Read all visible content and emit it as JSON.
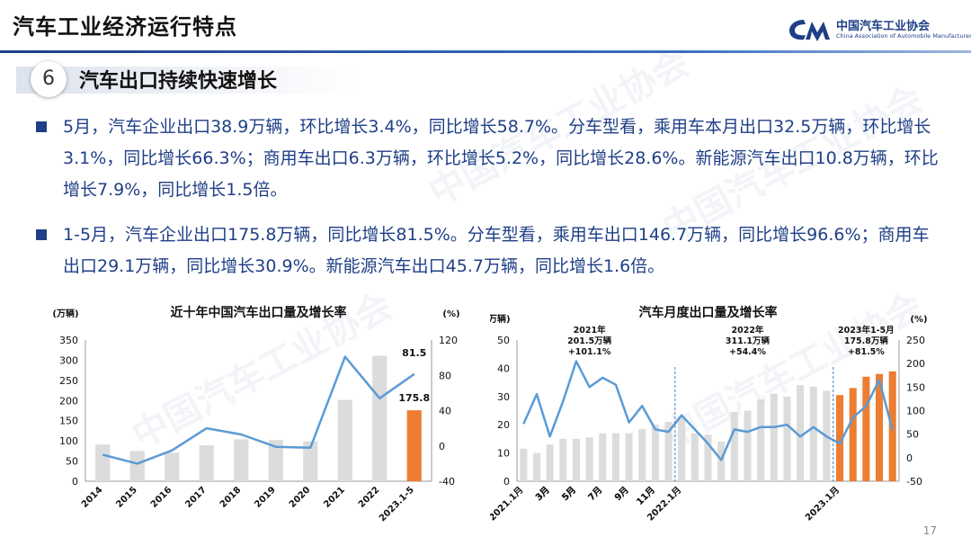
{
  "header": {
    "title": "汽车工业经济运行特点"
  },
  "logo": {
    "cn": "中国汽车工业协会",
    "en": "China Association of Automobile Manufacturers"
  },
  "section": {
    "number": "6",
    "title": "汽车出口持续快速增长"
  },
  "bullets": [
    "5月，汽车企业出口38.9万辆，环比增长3.4%，同比增长58.7%。分车型看，乘用车本月出口32.5万辆，环比增长3.1%，同比增长66.3%；商用车出口6.3万辆，环比增长5.2%，同比增长28.6%。新能源汽车出口10.8万辆，环比增长7.9%，同比增长1.5倍。",
    "1-5月，汽车企业出口175.8万辆，同比增长81.5%。分车型看，乘用车出口146.7万辆，同比增长96.6%；商用车出口29.1万辆，同比增长30.9%。新能源汽车出口45.7万辆，同比增长1.6倍。"
  ],
  "page_number": "17",
  "chart_data": [
    {
      "type": "bar",
      "title": "近十年中国汽车出口量及增长率",
      "ylabel_left": "(万辆)",
      "ylabel_right": "(%)",
      "categories": [
        "2014",
        "2015",
        "2016",
        "2017",
        "2018",
        "2019",
        "2020",
        "2021",
        "2022",
        "2023.1-5"
      ],
      "series": [
        {
          "type": "bar",
          "values": [
            91,
            75,
            71,
            89,
            104,
            102,
            99,
            201.5,
            311.1,
            175.8
          ],
          "colors": [
            "#dcdcdc",
            "#dcdcdc",
            "#dcdcdc",
            "#dcdcdc",
            "#dcdcdc",
            "#dcdcdc",
            "#dcdcdc",
            "#dcdcdc",
            "#dcdcdc",
            "#ed7d31"
          ]
        },
        {
          "type": "line",
          "axis": "right",
          "values": [
            -10,
            -20,
            -5,
            20,
            13,
            -1,
            -2,
            101,
            54,
            81.5
          ],
          "color": "#5b9bd5"
        }
      ],
      "data_labels": [
        {
          "text": "81.5",
          "index": 9,
          "series": 1
        },
        {
          "text": "175.8",
          "index": 9,
          "series": 0
        }
      ],
      "ylim_left": [
        0,
        350
      ],
      "yticks_left": [
        "0",
        "50",
        "100",
        "150",
        "200",
        "250",
        "300",
        "350"
      ],
      "ylim_right": [
        -40,
        120
      ],
      "yticks_right": [
        "-40",
        "0",
        "40",
        "80",
        "120"
      ]
    },
    {
      "type": "bar",
      "title": "汽车月度出口量及增长率",
      "ylabel_left": "(万辆)",
      "ylabel_right": "(%)",
      "categories": [
        "2021.1月",
        "2月",
        "3月",
        "4月",
        "5月",
        "6月",
        "7月",
        "8月",
        "9月",
        "10月",
        "11月",
        "12月",
        "2022.1月",
        "2月",
        "3月",
        "4月",
        "5月",
        "6月",
        "7月",
        "8月",
        "9月",
        "10月",
        "11月",
        "12月",
        "2023.1月",
        "2月",
        "3月",
        "4月",
        "5月"
      ],
      "tick_labels": [
        "2021.1月",
        "3月",
        "5月",
        "7月",
        "9月",
        "11月",
        "2022.1月",
        "3月",
        "5月",
        "7月",
        "9月",
        "11月",
        "2023.1月",
        "3月",
        "5月"
      ],
      "series": [
        {
          "type": "bar",
          "values": [
            11.5,
            10,
            13,
            15,
            15,
            15.5,
            17,
            17,
            17,
            18.5,
            20,
            21,
            23,
            17,
            16.5,
            14,
            24.5,
            25,
            29,
            31,
            30,
            34,
            33.5,
            32,
            30.5,
            33,
            37,
            38,
            38.9
          ],
          "colors": [
            "#dcdcdc",
            "#dcdcdc",
            "#dcdcdc",
            "#dcdcdc",
            "#dcdcdc",
            "#dcdcdc",
            "#dcdcdc",
            "#dcdcdc",
            "#dcdcdc",
            "#dcdcdc",
            "#dcdcdc",
            "#dcdcdc",
            "#dcdcdc",
            "#dcdcdc",
            "#dcdcdc",
            "#dcdcdc",
            "#dcdcdc",
            "#dcdcdc",
            "#dcdcdc",
            "#dcdcdc",
            "#dcdcdc",
            "#dcdcdc",
            "#dcdcdc",
            "#dcdcdc",
            "#ed7d31",
            "#ed7d31",
            "#ed7d31",
            "#ed7d31",
            "#ed7d31"
          ]
        },
        {
          "type": "line",
          "axis": "right",
          "values": [
            72,
            135,
            45,
            120,
            205,
            150,
            170,
            155,
            75,
            110,
            60,
            55,
            90,
            60,
            30,
            -5,
            60,
            55,
            65,
            65,
            70,
            45,
            65,
            45,
            30,
            85,
            110,
            165,
            59
          ],
          "color": "#5b9bd5"
        }
      ],
      "annotations": [
        {
          "lines": [
            "2021年",
            "201.5万辆",
            "+101.1%"
          ],
          "index": 5
        },
        {
          "lines": [
            "2022年",
            "311.1万辆",
            "+54.4%"
          ],
          "index": 17
        },
        {
          "lines": [
            "2023年1-5月",
            "175.8万辆",
            "+81.5%"
          ],
          "index": 26
        }
      ],
      "ylim_left": [
        0,
        50
      ],
      "yticks_left": [
        "0",
        "10",
        "20",
        "30",
        "40",
        "50"
      ],
      "ylim_right": [
        -50,
        250
      ],
      "yticks_right": [
        "-50",
        "0",
        "50",
        "100",
        "150",
        "200",
        "250"
      ]
    }
  ]
}
